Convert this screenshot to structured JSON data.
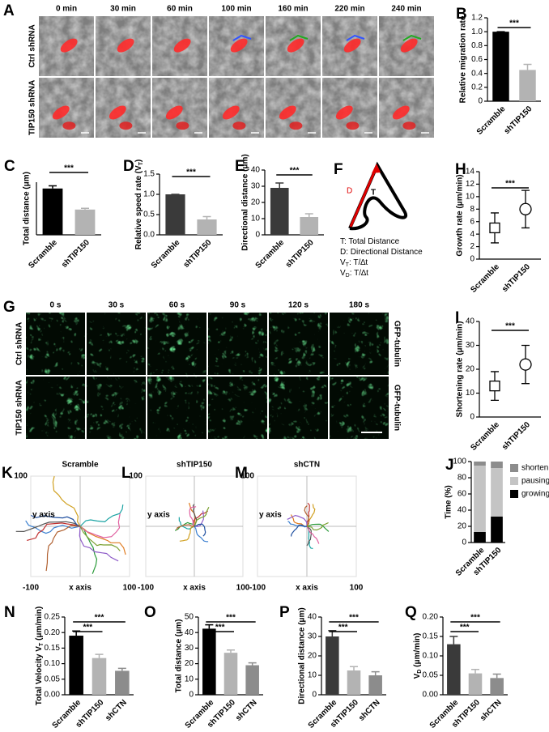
{
  "figure_a": {
    "panel": "A",
    "columns": [
      "0 min",
      "30 min",
      "60 min",
      "100 min",
      "160 min",
      "220 min",
      "240 min"
    ],
    "rows": [
      "Ctrl shRNA",
      "TIP150 shRNA"
    ]
  },
  "figure_f": {
    "panel": "F",
    "d_label": "D",
    "t_label": "T",
    "legend": [
      [
        {
          "text": "T: Total Distance"
        }
      ],
      [
        {
          "text": "D: Directional  Distance"
        }
      ],
      [
        {
          "text": "V"
        },
        {
          "sub": "T"
        },
        {
          "text": ": T/∆t"
        }
      ],
      [
        {
          "text": "V"
        },
        {
          "sub": "D"
        },
        {
          "text": ": T/∆t"
        }
      ]
    ]
  },
  "figure_g": {
    "panel": "G",
    "columns": [
      "0 s",
      "30 s",
      "60 s",
      "90 s",
      "120 s",
      "180 s"
    ],
    "rows": [
      "Ctrl shRNA",
      "TIP150 shRNA"
    ],
    "side_labels": [
      "GFP-tubulin",
      "GFP-tubulin"
    ]
  },
  "chart_data": [
    {
      "panel": "B",
      "type": "bar",
      "ylabel": "Relative migration rate",
      "categories": [
        "Scramble",
        "shTIP150"
      ],
      "values": [
        1,
        0.45
      ],
      "errors": [
        0,
        0.08
      ],
      "colors": [
        "#000000",
        "#b3b3b3"
      ],
      "ylim": [
        0,
        1.2
      ],
      "yticks": [
        0,
        0.2,
        0.4,
        0.6,
        0.8,
        {
          "value": 1,
          "label": "1.0"
        },
        1.2
      ],
      "significance": [
        "***"
      ]
    },
    {
      "panel": "C",
      "type": "bar",
      "ylabel": "Total distance (μm)",
      "categories": [
        "Scramble",
        "shTIP150"
      ],
      "values": [
        44,
        24
      ],
      "errors": [
        2.5,
        1.2
      ],
      "colors": [
        "#000000",
        "#b3b3b3"
      ],
      "ylim": [
        0,
        50
      ],
      "yticks": [],
      "significance": [
        "***"
      ]
    },
    {
      "panel": "D",
      "type": "bar",
      "ylabel": [
        {
          "text": "Relative speed rate (V"
        },
        {
          "sub": "T"
        },
        {
          "text": ")"
        }
      ],
      "categories": [
        "Scramble",
        "shTIP150"
      ],
      "values": [
        1,
        0.38
      ],
      "errors": [
        0,
        0.07
      ],
      "colors": [
        "#3a3a3a",
        "#b3b3b3"
      ],
      "ylim": [
        0,
        1.5
      ],
      "yticks": [
        {
          "value": 0,
          "label": "0.0"
        },
        0.5,
        {
          "value": 1,
          "label": "1.0"
        },
        1.5
      ],
      "significance": [
        "***"
      ]
    },
    {
      "panel": "E",
      "type": "bar",
      "ylabel": "Directional distance (μm)",
      "categories": [
        "Scramble",
        "shTIP150"
      ],
      "values": [
        29,
        11
      ],
      "errors": [
        3,
        2
      ],
      "colors": [
        "#3a3a3a",
        "#b3b3b3"
      ],
      "ylim": [
        0,
        40
      ],
      "yticks": [
        0,
        10,
        20,
        30,
        40
      ],
      "significance": [
        "***"
      ]
    },
    {
      "panel": "H",
      "type": "errorbar",
      "ylabel": "Growth rate (μm/min)",
      "categories": [
        "Scramble",
        "shTIP150"
      ],
      "values": [
        5,
        8
      ],
      "errors": [
        2.4,
        3
      ],
      "markers": [
        "square",
        "circle"
      ],
      "ylim": [
        0,
        14
      ],
      "yticks": [
        0,
        2,
        4,
        6,
        8,
        10,
        12,
        14
      ],
      "significance": [
        "***"
      ]
    },
    {
      "panel": "I",
      "type": "errorbar",
      "ylabel": "Shortening rate (μm/min)",
      "categories": [
        "Scramble",
        "shTIP150"
      ],
      "values": [
        13,
        22
      ],
      "errors": [
        6,
        8
      ],
      "markers": [
        "square",
        "circle"
      ],
      "ylim": [
        0,
        40
      ],
      "yticks": [
        0,
        10,
        20,
        30,
        40
      ],
      "significance": [
        "***"
      ]
    },
    {
      "panel": "J",
      "type": "stacked",
      "ylabel": "Time (%)",
      "categories": [
        "Scramble",
        "shTIP150"
      ],
      "series": [
        {
          "name": "growing",
          "color": "#000000",
          "values": [
            13,
            32
          ]
        },
        {
          "name": "pausing",
          "color": "#c4c4c4",
          "values": [
            82,
            60
          ]
        },
        {
          "name": "shortening",
          "color": "#8c8c8c",
          "values": [
            5,
            8
          ]
        }
      ],
      "ylim": [
        0,
        100
      ],
      "yticks": [
        0,
        20,
        40,
        60,
        80,
        100
      ]
    },
    {
      "panel": "N",
      "type": "bar",
      "ylabel": [
        {
          "text": "Total Velocity V"
        },
        {
          "sub": "T"
        },
        {
          "text": " (μm/min)"
        }
      ],
      "categories": [
        "Scramble",
        "shTIP150",
        "shCTN"
      ],
      "values": [
        0.19,
        0.118,
        0.077
      ],
      "errors": [
        0.015,
        0.012,
        0.008
      ],
      "colors": [
        "#000000",
        "#b3b3b3",
        "#8c8c8c"
      ],
      "ylim": [
        0,
        0.25
      ],
      "yticks": [
        {
          "value": 0,
          "label": "0.00"
        },
        {
          "value": 0.05,
          "label": "0.05"
        },
        {
          "value": 0.1,
          "label": "0.10"
        },
        {
          "value": 0.15,
          "label": "0.15"
        },
        {
          "value": 0.2,
          "label": "0.20"
        },
        {
          "value": 0.25,
          "label": "0.25"
        }
      ],
      "significance": [
        "***",
        "***"
      ]
    },
    {
      "panel": "O",
      "type": "bar",
      "ylabel": "Total distance (μm)",
      "categories": [
        "Scramble",
        "shTIP150",
        "shCTN"
      ],
      "values": [
        42.5,
        27,
        19
      ],
      "errors": [
        2.5,
        1.8,
        1.5
      ],
      "colors": [
        "#000000",
        "#b3b3b3",
        "#8c8c8c"
      ],
      "ylim": [
        0,
        50
      ],
      "yticks": [
        0,
        10,
        20,
        30,
        40,
        50
      ],
      "significance": [
        "***",
        "***"
      ]
    },
    {
      "panel": "P",
      "type": "bar",
      "ylabel": "Directional distance (μm)",
      "categories": [
        "Scramble",
        "shTIP150",
        "shCTN"
      ],
      "values": [
        30,
        12.5,
        10
      ],
      "errors": [
        3,
        2,
        1.8
      ],
      "colors": [
        "#3a3a3a",
        "#b3b3b3",
        "#8c8c8c"
      ],
      "ylim": [
        0,
        40
      ],
      "yticks": [
        0,
        10,
        20,
        30,
        40
      ],
      "significance": [
        "***",
        "***"
      ]
    },
    {
      "panel": "Q",
      "type": "bar",
      "ylabel": [
        {
          "text": "V"
        },
        {
          "sub": "D"
        },
        {
          "text": " (μm/min)"
        }
      ],
      "categories": [
        "Scramble",
        "shTIP150",
        "shCTN"
      ],
      "values": [
        0.13,
        0.055,
        0.043
      ],
      "errors": [
        0.02,
        0.01,
        0.01
      ],
      "colors": [
        "#3a3a3a",
        "#b3b3b3",
        "#8c8c8c"
      ],
      "ylim": [
        0,
        0.2
      ],
      "yticks": [
        {
          "value": 0,
          "label": "0.00"
        },
        {
          "value": 0.05,
          "label": "0.05"
        },
        {
          "value": 0.1,
          "label": "0.10"
        },
        {
          "value": 0.15,
          "label": "0.15"
        },
        {
          "value": 0.2,
          "label": "0.20"
        }
      ],
      "significance": [
        "***",
        "***"
      ]
    },
    {
      "panel": "K",
      "type": "trajectory",
      "title": "Scramble",
      "xlabel": "x axis",
      "ylabel": "y axis",
      "xlim": [
        -100,
        100
      ],
      "ylim": [
        -100,
        100
      ],
      "xticks": [
        -100,
        100
      ],
      "yticks": [
        100
      ]
    },
    {
      "panel": "L",
      "type": "trajectory",
      "title": "shTIP150",
      "xlabel": "x axis",
      "ylabel": "y axis",
      "xlim": [
        -100,
        100
      ],
      "ylim": [
        -100,
        100
      ],
      "xticks": [
        -100,
        100
      ],
      "yticks": [
        100
      ]
    },
    {
      "panel": "M",
      "type": "trajectory",
      "title": "shCTN",
      "xlabel": "x axis",
      "ylabel": "y axis",
      "xlim": [
        -100,
        100
      ],
      "ylim": [
        -100,
        100
      ],
      "xticks": [
        -100,
        100
      ],
      "yticks": [
        100
      ]
    }
  ]
}
